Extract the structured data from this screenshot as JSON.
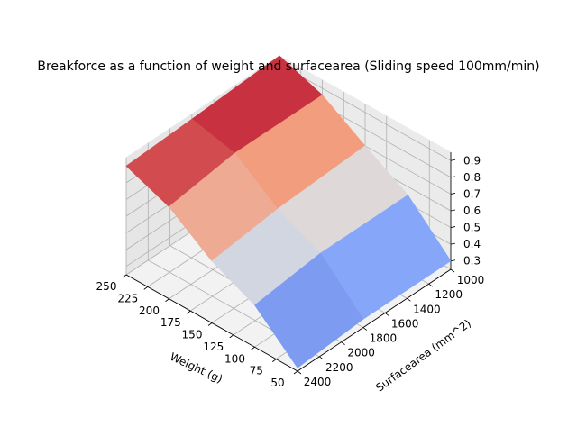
{
  "chart_data": {
    "type": "surface",
    "title": "Breakforce as a function of weight and surfacearea (Sliding speed 100mm/min)",
    "xlabel": "Weight (g)",
    "ylabel": "Surfacearea (mm^2)",
    "zlabel": "",
    "xlim": [
      50,
      250
    ],
    "ylim": [
      1000,
      2400
    ],
    "zlim": [
      0.25,
      0.95
    ],
    "x_ticks": [
      "250",
      "225",
      "200",
      "175",
      "150",
      "125",
      "100",
      "75",
      "50"
    ],
    "y_ticks": [
      "1000",
      "1200",
      "1400",
      "1600",
      "1800",
      "2000",
      "2200",
      "2400"
    ],
    "z_ticks": [
      "0.3",
      "0.4",
      "0.5",
      "0.6",
      "0.7",
      "0.8",
      "0.9"
    ],
    "weights": [
      50,
      100,
      150,
      200,
      250
    ],
    "surfaceareas": [
      1000,
      1800,
      2400
    ],
    "z": [
      [
        0.3,
        0.3,
        0.27
      ],
      [
        0.55,
        0.55,
        0.5
      ],
      [
        0.7,
        0.67,
        0.62
      ],
      [
        0.86,
        0.86,
        0.8
      ],
      [
        0.95,
        0.92,
        0.9
      ]
    ],
    "colormap": "coolwarm",
    "grid": true
  }
}
